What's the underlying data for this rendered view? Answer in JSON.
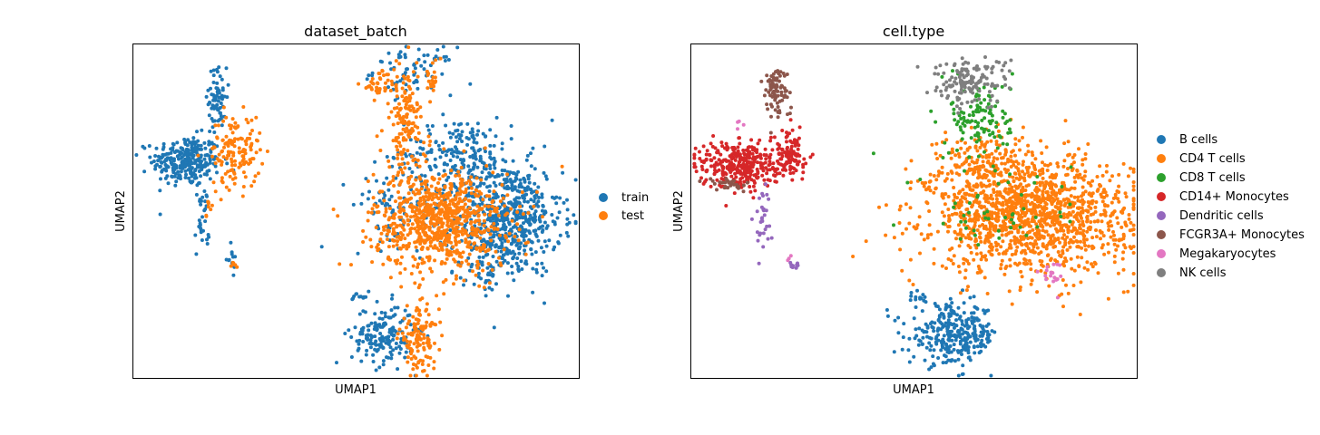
{
  "chart_data": [
    {
      "type": "scatter",
      "title": "dataset_batch",
      "xlabel": "UMAP1",
      "ylabel": "UMAP2",
      "xlim": [
        0,
        10
      ],
      "ylim": [
        0,
        10
      ],
      "grid": false,
      "legend": "right",
      "series": [
        {
          "name": "train",
          "color": "#1f77b4",
          "clusters": [
            {
              "cx": 1.2,
              "cy": 6.5,
              "sx": 0.38,
              "sy": 0.38,
              "n": 280
            },
            {
              "cx": 1.9,
              "cy": 8.4,
              "sx": 0.1,
              "sy": 0.45,
              "n": 70
            },
            {
              "cx": 1.55,
              "cy": 4.7,
              "sx": 0.08,
              "sy": 0.55,
              "n": 30
            },
            {
              "cx": 2.2,
              "cy": 3.6,
              "sx": 0.06,
              "sy": 0.18,
              "n": 12
            },
            {
              "cx": 6.3,
              "cy": 9.2,
              "sx": 0.45,
              "sy": 0.35,
              "n": 70
            },
            {
              "cx": 8.4,
              "cy": 4.8,
              "sx": 0.6,
              "sy": 0.85,
              "n": 600
            },
            {
              "cx": 7.3,
              "cy": 6.7,
              "sx": 0.6,
              "sy": 0.55,
              "n": 200
            },
            {
              "cx": 6.0,
              "cy": 5.2,
              "sx": 0.55,
              "sy": 0.6,
              "n": 90
            },
            {
              "cx": 7.9,
              "cy": 3.2,
              "sx": 0.25,
              "sy": 0.35,
              "n": 40
            },
            {
              "cx": 5.6,
              "cy": 1.3,
              "sx": 0.35,
              "sy": 0.45,
              "n": 170
            },
            {
              "cx": 5.1,
              "cy": 2.4,
              "sx": 0.12,
              "sy": 0.08,
              "n": 12
            }
          ]
        },
        {
          "name": "test",
          "color": "#ff7f0e",
          "clusters": [
            {
              "cx": 2.3,
              "cy": 6.8,
              "sx": 0.28,
              "sy": 0.55,
              "n": 140
            },
            {
              "cx": 6.9,
              "cy": 4.7,
              "sx": 0.75,
              "sy": 0.75,
              "n": 820
            },
            {
              "cx": 6.1,
              "cy": 7.6,
              "sx": 0.25,
              "sy": 0.9,
              "n": 150
            },
            {
              "cx": 5.6,
              "cy": 8.8,
              "sx": 0.25,
              "sy": 0.2,
              "n": 40
            },
            {
              "cx": 6.7,
              "cy": 9.0,
              "sx": 0.1,
              "sy": 0.25,
              "n": 20
            },
            {
              "cx": 6.4,
              "cy": 1.2,
              "sx": 0.22,
              "sy": 0.45,
              "n": 130
            },
            {
              "cx": 2.3,
              "cy": 3.4,
              "sx": 0.04,
              "sy": 0.04,
              "n": 6
            },
            {
              "cx": 1.7,
              "cy": 5.1,
              "sx": 0.05,
              "sy": 0.25,
              "n": 8
            }
          ]
        }
      ]
    },
    {
      "type": "scatter",
      "title": "cell.type",
      "xlabel": "UMAP1",
      "ylabel": "UMAP2",
      "xlim": [
        0,
        10
      ],
      "ylim": [
        0,
        10
      ],
      "grid": false,
      "legend": "right",
      "series": [
        {
          "name": "B cells",
          "color": "#1f77b4",
          "clusters": [
            {
              "cx": 5.9,
              "cy": 1.3,
              "sx": 0.5,
              "sy": 0.45,
              "n": 300
            },
            {
              "cx": 5.1,
              "cy": 2.4,
              "sx": 0.12,
              "sy": 0.08,
              "n": 12
            }
          ]
        },
        {
          "name": "CD4 T cells",
          "color": "#ff7f0e",
          "clusters": [
            {
              "cx": 7.6,
              "cy": 4.9,
              "sx": 1.1,
              "sy": 0.85,
              "n": 1400
            },
            {
              "cx": 6.5,
              "cy": 6.5,
              "sx": 0.5,
              "sy": 0.45,
              "n": 150
            },
            {
              "cx": 5.2,
              "cy": 5.8,
              "sx": 0.15,
              "sy": 0.1,
              "n": 10
            }
          ]
        },
        {
          "name": "CD8 T cells",
          "color": "#2ca02c",
          "clusters": [
            {
              "cx": 6.5,
              "cy": 7.8,
              "sx": 0.35,
              "sy": 0.6,
              "n": 120
            },
            {
              "cx": 7.0,
              "cy": 5.0,
              "sx": 0.9,
              "sy": 0.8,
              "n": 50
            }
          ]
        },
        {
          "name": "CD14+ Monocytes",
          "color": "#d62728",
          "clusters": [
            {
              "cx": 1.1,
              "cy": 6.4,
              "sx": 0.45,
              "sy": 0.35,
              "n": 330
            },
            {
              "cx": 2.2,
              "cy": 6.7,
              "sx": 0.2,
              "sy": 0.35,
              "n": 100
            }
          ]
        },
        {
          "name": "Dendritic cells",
          "color": "#9467bd",
          "clusters": [
            {
              "cx": 1.6,
              "cy": 4.8,
              "sx": 0.1,
              "sy": 0.45,
              "n": 30
            },
            {
              "cx": 2.3,
              "cy": 3.4,
              "sx": 0.06,
              "sy": 0.06,
              "n": 12
            }
          ]
        },
        {
          "name": "FCGR3A+ Monocytes",
          "color": "#8c564b",
          "clusters": [
            {
              "cx": 1.9,
              "cy": 8.6,
              "sx": 0.15,
              "sy": 0.4,
              "n": 80
            },
            {
              "cx": 0.8,
              "cy": 5.8,
              "sx": 0.25,
              "sy": 0.12,
              "n": 30
            }
          ]
        },
        {
          "name": "Megakaryocytes",
          "color": "#e377c2",
          "clusters": [
            {
              "cx": 8.1,
              "cy": 3.1,
              "sx": 0.12,
              "sy": 0.2,
              "n": 18
            },
            {
              "cx": 1.1,
              "cy": 7.6,
              "sx": 0.05,
              "sy": 0.05,
              "n": 4
            },
            {
              "cx": 2.2,
              "cy": 3.6,
              "sx": 0.04,
              "sy": 0.05,
              "n": 3
            }
          ]
        },
        {
          "name": "NK cells",
          "color": "#7f7f7f",
          "clusters": [
            {
              "cx": 6.2,
              "cy": 8.9,
              "sx": 0.45,
              "sy": 0.35,
              "n": 140
            }
          ]
        }
      ]
    }
  ]
}
